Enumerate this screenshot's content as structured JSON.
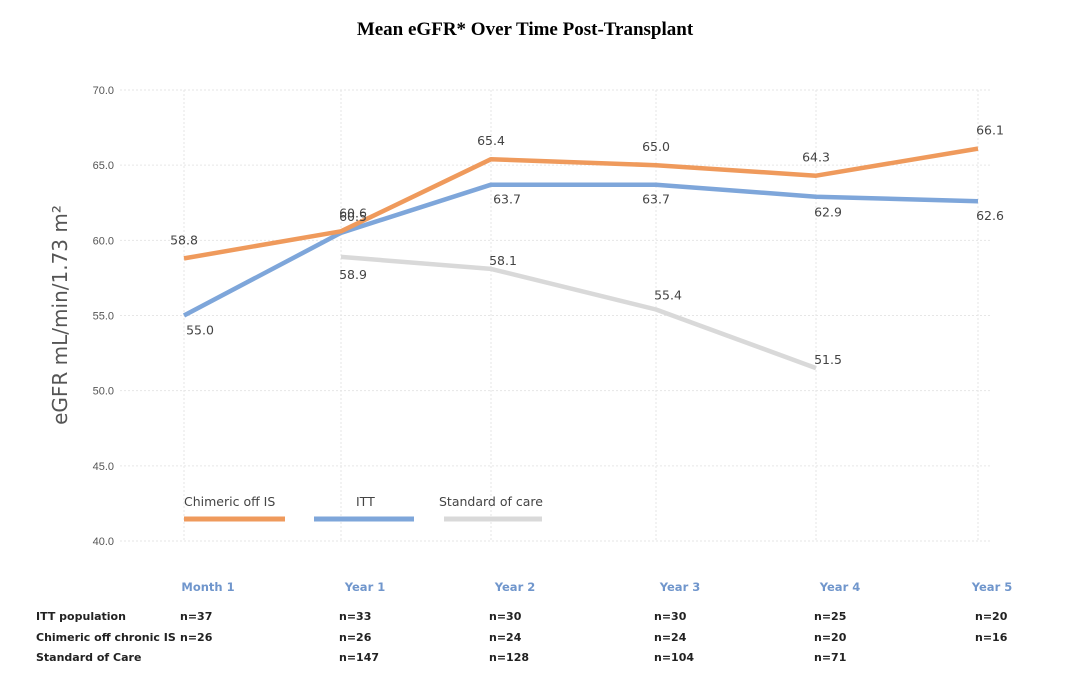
{
  "chart_data": {
    "type": "line",
    "title": "Mean eGFR* Over Time Post-Transplant",
    "ylabel": "eGFR mL/min/1.73 m²",
    "xlabel": "",
    "ylim": [
      40,
      70
    ],
    "yticks": [
      "40.0",
      "45.0",
      "50.0",
      "55.0",
      "60.0",
      "65.0",
      "70.0"
    ],
    "grid": true,
    "legend_position": "bottom-left",
    "categories": [
      "Month 1",
      "Year 1",
      "Year 2",
      "Year 3",
      "Year 4",
      "Year 5"
    ],
    "series": [
      {
        "name": "Chimeric off IS",
        "color": "#ef9a5c",
        "values": [
          58.8,
          60.6,
          65.4,
          65.0,
          64.3,
          66.1
        ],
        "labels": [
          "58.8",
          "60.6",
          "65.4",
          "65.0",
          "64.3",
          "66.1"
        ]
      },
      {
        "name": "ITT",
        "color": "#7ea6da",
        "values": [
          55.0,
          60.5,
          63.7,
          63.7,
          62.9,
          62.6
        ],
        "labels": [
          "55.0",
          "60.5",
          "63.7",
          "63.7",
          "62.9",
          "62.6"
        ]
      },
      {
        "name": "Standard of care",
        "color": "#d9d9d9",
        "values": [
          null,
          58.9,
          58.1,
          55.4,
          51.5,
          null
        ],
        "labels": [
          null,
          "58.9",
          "58.1",
          "55.4",
          "51.5",
          null
        ]
      }
    ]
  },
  "n_table": {
    "rows": [
      {
        "label": "ITT population",
        "values": [
          "n=37",
          "n=33",
          "n=30",
          "n=30",
          "n=25",
          "n=20"
        ]
      },
      {
        "label": "Chimeric off chronic IS",
        "values": [
          "n=26",
          "n=26",
          "n=24",
          "n=24",
          "n=20",
          "n=16"
        ]
      },
      {
        "label": "Standard of Care",
        "values": [
          "",
          "n=147",
          "n=128",
          "n=104",
          "n=71",
          ""
        ]
      }
    ]
  }
}
